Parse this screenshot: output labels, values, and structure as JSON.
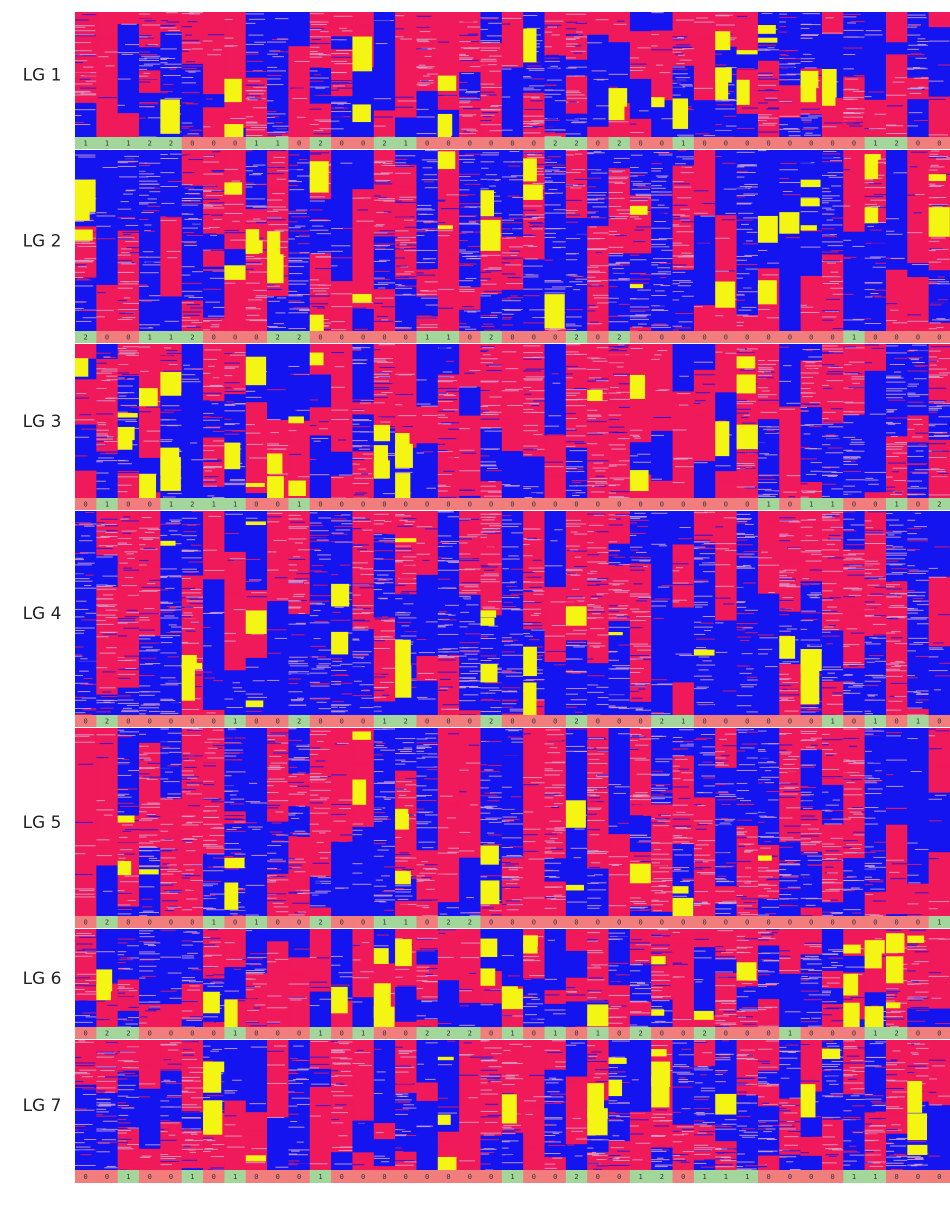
{
  "colors": {
    "red": "#f0195a",
    "blue": "#1414f0",
    "yellow": "#f5f514",
    "streak_light": "#d7a5cd",
    "strip_red": "#f27d7d",
    "strip_green": "#a2d69a"
  },
  "linkage_groups": [
    {
      "label": "LG 1",
      "genotypes": [
        "1",
        "1",
        "1",
        "2",
        "2",
        "0",
        "0",
        "0",
        "1",
        "1",
        "0",
        "2",
        "0",
        "0",
        "2",
        "1",
        "0",
        "0",
        "0",
        "0",
        "0",
        "0",
        "2",
        "2",
        "0",
        "2",
        "0",
        "0",
        "1",
        "0",
        "0",
        "0",
        "0",
        "0",
        "0",
        "0",
        "0",
        "1",
        "2",
        "0",
        "0"
      ]
    },
    {
      "label": "LG 2",
      "genotypes": [
        "2",
        "0",
        "0",
        "1",
        "1",
        "2",
        "0",
        "0",
        "0",
        "2",
        "2",
        "0",
        "0",
        "0",
        "0",
        "0",
        "1",
        "1",
        "0",
        "2",
        "0",
        "0",
        "0",
        "2",
        "0",
        "2",
        "0",
        "0",
        "0",
        "0",
        "0",
        "0",
        "0",
        "0",
        "0",
        "0",
        "1",
        "0",
        "0",
        "0",
        "0"
      ]
    },
    {
      "label": "LG 3",
      "genotypes": [
        "0",
        "1",
        "0",
        "0",
        "1",
        "2",
        "1",
        "1",
        "0",
        "0",
        "1",
        "0",
        "0",
        "0",
        "0",
        "0",
        "0",
        "0",
        "0",
        "0",
        "0",
        "0",
        "0",
        "0",
        "0",
        "0",
        "0",
        "0",
        "0",
        "0",
        "0",
        "0",
        "1",
        "0",
        "1",
        "1",
        "0",
        "0",
        "1",
        "0",
        "2"
      ]
    },
    {
      "label": "LG 4",
      "genotypes": [
        "0",
        "2",
        "0",
        "0",
        "0",
        "0",
        "0",
        "1",
        "0",
        "0",
        "2",
        "0",
        "0",
        "0",
        "1",
        "2",
        "0",
        "0",
        "0",
        "2",
        "0",
        "0",
        "0",
        "2",
        "0",
        "0",
        "0",
        "2",
        "1",
        "0",
        "0",
        "0",
        "0",
        "0",
        "0",
        "1",
        "0",
        "1",
        "0",
        "1",
        "0"
      ]
    },
    {
      "label": "LG 5",
      "genotypes": [
        "0",
        "2",
        "0",
        "0",
        "0",
        "0",
        "1",
        "0",
        "1",
        "0",
        "0",
        "2",
        "0",
        "0",
        "1",
        "1",
        "0",
        "2",
        "2",
        "0",
        "0",
        "0",
        "0",
        "0",
        "0",
        "0",
        "0",
        "0",
        "0",
        "0",
        "0",
        "0",
        "0",
        "0",
        "0",
        "0",
        "0",
        "0",
        "0",
        "0",
        "1"
      ]
    },
    {
      "label": "LG 6",
      "genotypes": [
        "0",
        "2",
        "2",
        "0",
        "0",
        "0",
        "0",
        "1",
        "0",
        "0",
        "0",
        "1",
        "0",
        "1",
        "0",
        "0",
        "2",
        "2",
        "2",
        "0",
        "1",
        "0",
        "1",
        "0",
        "1",
        "0",
        "2",
        "0",
        "0",
        "2",
        "0",
        "0",
        "0",
        "1",
        "0",
        "0",
        "0",
        "1",
        "2",
        "0",
        "0"
      ]
    },
    {
      "label": "LG 7",
      "genotypes": [
        "0",
        "0",
        "1",
        "0",
        "0",
        "1",
        "0",
        "1",
        "0",
        "0",
        "0",
        "1",
        "0",
        "0",
        "0",
        "0",
        "0",
        "0",
        "0",
        "0",
        "1",
        "0",
        "0",
        "2",
        "0",
        "0",
        "1",
        "2",
        "0",
        "1",
        "1",
        "1",
        "0",
        "0",
        "0",
        "0",
        "1",
        "1",
        "0",
        "0",
        "0"
      ]
    }
  ]
}
